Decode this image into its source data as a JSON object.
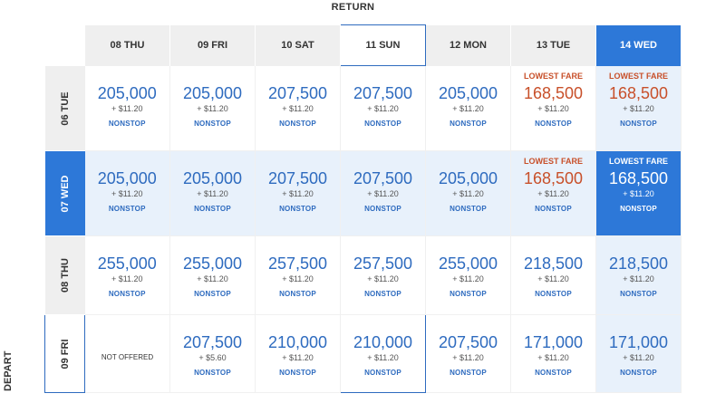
{
  "return_label": "RETURN",
  "depart_label": "DEPART",
  "columns": [
    {
      "label": "08 THU"
    },
    {
      "label": "09 FRI"
    },
    {
      "label": "10 SAT"
    },
    {
      "label": "11 SUN"
    },
    {
      "label": "12 MON"
    },
    {
      "label": "13 TUE"
    },
    {
      "label": "14 WED"
    }
  ],
  "rows": [
    {
      "label": "06 TUE",
      "cells": [
        {
          "miles": "205,000",
          "tax": "+ $11.20",
          "stop": "NONSTOP"
        },
        {
          "miles": "205,000",
          "tax": "+ $11.20",
          "stop": "NONSTOP"
        },
        {
          "miles": "207,500",
          "tax": "+ $11.20",
          "stop": "NONSTOP"
        },
        {
          "miles": "207,500",
          "tax": "+ $11.20",
          "stop": "NONSTOP"
        },
        {
          "miles": "205,000",
          "tax": "+ $11.20",
          "stop": "NONSTOP"
        },
        {
          "badge": "LOWEST FARE",
          "miles": "168,500",
          "tax": "+ $11.20",
          "stop": "NONSTOP"
        },
        {
          "badge": "LOWEST FARE",
          "miles": "168,500",
          "tax": "+ $11.20",
          "stop": "NONSTOP"
        }
      ]
    },
    {
      "label": "07 WED",
      "cells": [
        {
          "miles": "205,000",
          "tax": "+ $11.20",
          "stop": "NONSTOP"
        },
        {
          "miles": "205,000",
          "tax": "+ $11.20",
          "stop": "NONSTOP"
        },
        {
          "miles": "207,500",
          "tax": "+ $11.20",
          "stop": "NONSTOP"
        },
        {
          "miles": "207,500",
          "tax": "+ $11.20",
          "stop": "NONSTOP"
        },
        {
          "miles": "205,000",
          "tax": "+ $11.20",
          "stop": "NONSTOP"
        },
        {
          "badge": "LOWEST FARE",
          "miles": "168,500",
          "tax": "+ $11.20",
          "stop": "NONSTOP"
        },
        {
          "badge": "LOWEST FARE",
          "miles": "168,500",
          "tax": "+ $11.20",
          "stop": "NONSTOP"
        }
      ]
    },
    {
      "label": "08 THU",
      "cells": [
        {
          "miles": "255,000",
          "tax": "+ $11.20",
          "stop": "NONSTOP"
        },
        {
          "miles": "255,000",
          "tax": "+ $11.20",
          "stop": "NONSTOP"
        },
        {
          "miles": "257,500",
          "tax": "+ $11.20",
          "stop": "NONSTOP"
        },
        {
          "miles": "257,500",
          "tax": "+ $11.20",
          "stop": "NONSTOP"
        },
        {
          "miles": "255,000",
          "tax": "+ $11.20",
          "stop": "NONSTOP"
        },
        {
          "miles": "218,500",
          "tax": "+ $11.20",
          "stop": "NONSTOP"
        },
        {
          "miles": "218,500",
          "tax": "+ $11.20",
          "stop": "NONSTOP"
        }
      ]
    },
    {
      "label": "09 FRI",
      "cells": [
        {
          "not_offered": "NOT OFFERED"
        },
        {
          "miles": "207,500",
          "tax": "+ $5.60",
          "stop": "NONSTOP"
        },
        {
          "miles": "210,000",
          "tax": "+ $11.20",
          "stop": "NONSTOP"
        },
        {
          "miles": "210,000",
          "tax": "+ $11.20",
          "stop": "NONSTOP"
        },
        {
          "miles": "207,500",
          "tax": "+ $11.20",
          "stop": "NONSTOP"
        },
        {
          "miles": "171,000",
          "tax": "+ $11.20",
          "stop": "NONSTOP"
        },
        {
          "miles": "171,000",
          "tax": "+ $11.20",
          "stop": "NONSTOP"
        }
      ]
    }
  ]
}
